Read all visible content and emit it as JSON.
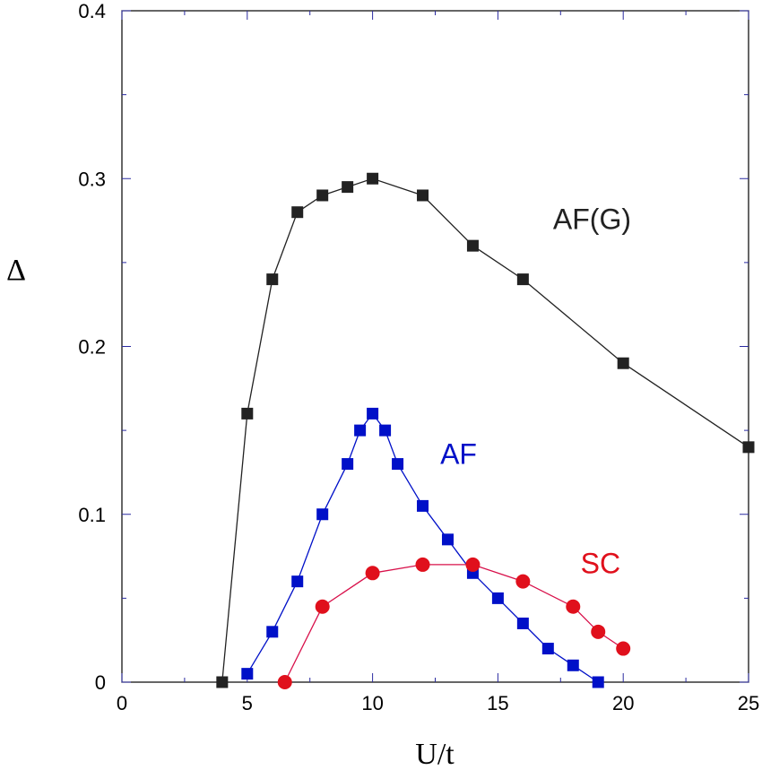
{
  "chart_data": {
    "type": "line",
    "xlabel": "U/t",
    "ylabel": "Δ",
    "xlim": [
      0,
      25
    ],
    "ylim": [
      0,
      0.4
    ],
    "xticks": [
      0,
      5,
      10,
      15,
      20,
      25
    ],
    "yticks": [
      0,
      0.1,
      0.2,
      0.3,
      0.4
    ],
    "xtick_labels": [
      "0",
      "5",
      "10",
      "15",
      "20",
      "25"
    ],
    "ytick_labels": [
      "0",
      "0.1",
      "0.2",
      "0.3",
      "0.4"
    ],
    "grid": false,
    "series": [
      {
        "name": "AF(G)",
        "color": "#222222",
        "marker": "square",
        "x": [
          4,
          5,
          6,
          7,
          8,
          9,
          10,
          12,
          14,
          16,
          20,
          25
        ],
        "y": [
          0,
          0.16,
          0.24,
          0.28,
          0.29,
          0.295,
          0.3,
          0.29,
          0.26,
          0.24,
          0.19,
          0.14
        ],
        "label_at": [
          17.2,
          0.27
        ]
      },
      {
        "name": "AF",
        "color": "#0010c8",
        "marker": "square",
        "x": [
          5,
          6,
          7,
          8,
          9,
          9.5,
          10,
          10.5,
          11,
          12,
          13,
          14,
          15,
          16,
          17,
          18,
          19
        ],
        "y": [
          0.005,
          0.03,
          0.06,
          0.1,
          0.13,
          0.15,
          0.16,
          0.15,
          0.13,
          0.105,
          0.085,
          0.065,
          0.05,
          0.035,
          0.02,
          0.01,
          0
        ],
        "label_at": [
          12.7,
          0.13
        ]
      },
      {
        "name": "SC",
        "color": "#e0101c",
        "line_color": "#d8104a",
        "marker": "circle",
        "x": [
          6.5,
          8,
          10,
          12,
          14,
          16,
          18,
          19,
          20
        ],
        "y": [
          0,
          0.045,
          0.065,
          0.07,
          0.07,
          0.06,
          0.045,
          0.03,
          0.02
        ],
        "label_at": [
          18.3,
          0.065
        ]
      }
    ]
  }
}
